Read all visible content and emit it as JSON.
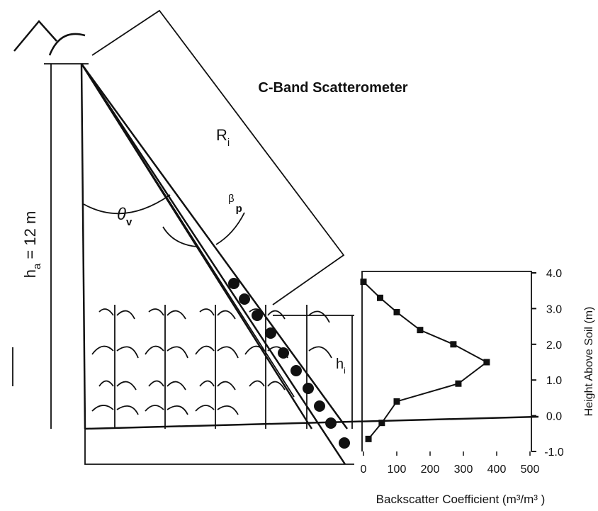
{
  "title": "C-Band Scatterometer",
  "range_label": {
    "main": "R",
    "sub": "i"
  },
  "height_label": {
    "main": "h",
    "sub": "a",
    "rest": " = 12 m"
  },
  "theta_label": {
    "main": "θ",
    "sub": "v"
  },
  "beta_label": {
    "main": "β",
    "sub": "p"
  },
  "layer_label": {
    "main": "h",
    "sub": "i"
  },
  "chart_data": {
    "type": "line",
    "x_label": "Backscatter Coefficient (m³/m³ )",
    "y_label": "Height Above Soil (m)",
    "x": [
      0,
      50,
      100,
      170,
      270,
      370,
      285,
      100,
      55,
      15
    ],
    "values": [
      3.75,
      3.3,
      2.9,
      2.4,
      2.0,
      1.5,
      0.9,
      0.4,
      -0.2,
      -0.65
    ],
    "color": "#111111",
    "xlim": [
      0,
      500
    ],
    "ylim": [
      -1,
      4
    ],
    "xticks": [
      0,
      100,
      200,
      300,
      400,
      500
    ],
    "yticks": [
      {
        "value": 4,
        "label": "4.0"
      },
      {
        "value": 3,
        "label": "3.0"
      },
      {
        "value": 2,
        "label": "2.0"
      },
      {
        "value": 1,
        "label": "1.0"
      },
      {
        "value": 0,
        "label": "0.0"
      },
      {
        "value": -1,
        "label": "-1.0"
      }
    ]
  }
}
